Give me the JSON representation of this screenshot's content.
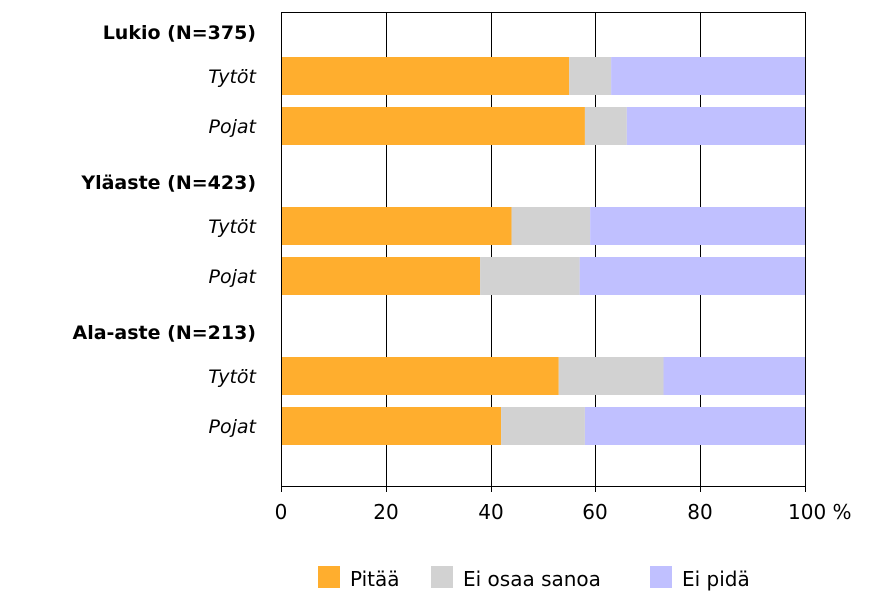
{
  "chart_data": {
    "type": "bar",
    "orientation": "horizontal",
    "stacked": true,
    "xlim": [
      0,
      100
    ],
    "x_ticks": [
      "0",
      "20",
      "40",
      "60",
      "80",
      "100 %"
    ],
    "grid": true,
    "legend_position": "bottom",
    "groups": [
      {
        "label": "Lukio (N=375)",
        "rows": [
          {
            "label": "Tytöt",
            "values": [
              55,
              8,
              37
            ]
          },
          {
            "label": "Pojat",
            "values": [
              58,
              8,
              34
            ]
          }
        ]
      },
      {
        "label": "Yläaste (N=423)",
        "rows": [
          {
            "label": "Tytöt",
            "values": [
              44,
              15,
              41
            ]
          },
          {
            "label": "Pojat",
            "values": [
              38,
              19,
              43
            ]
          }
        ]
      },
      {
        "label": "Ala-aste (N=213)",
        "rows": [
          {
            "label": "Tytöt",
            "values": [
              53,
              20,
              27
            ]
          },
          {
            "label": "Pojat",
            "values": [
              42,
              16,
              42
            ]
          }
        ]
      }
    ],
    "series": [
      {
        "name": "Pitää",
        "color": "#ffae2e"
      },
      {
        "name": "Ei osaa sanoa",
        "color": "#d2d2d2"
      },
      {
        "name": "Ei pidä",
        "color": "#c0c0ff"
      }
    ]
  }
}
